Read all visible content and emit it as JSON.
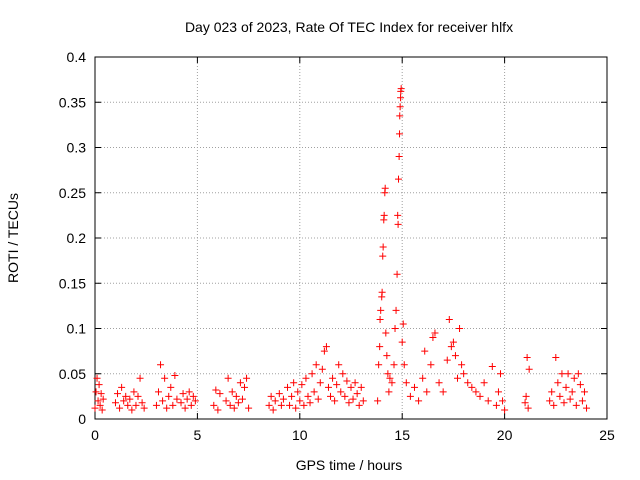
{
  "chart_data": {
    "type": "scatter",
    "title": "Day 023 of 2023, Rate Of TEC Index for receiver hlfx",
    "xlabel": "GPS time / hours",
    "ylabel": "ROTI / TECUs",
    "xlim": [
      0,
      25
    ],
    "ylim": [
      0,
      0.4
    ],
    "xticks": [
      0,
      5,
      10,
      15,
      20,
      25
    ],
    "xtick_labels": [
      "0",
      "5",
      "10",
      "15",
      "20",
      "25"
    ],
    "yticks": [
      0,
      0.05,
      0.1,
      0.15,
      0.2,
      0.25,
      0.3,
      0.35,
      0.4
    ],
    "ytick_labels": [
      "0",
      "0.05",
      "0.1",
      "0.15",
      "0.2",
      "0.25",
      "0.3",
      "0.35",
      "0.4"
    ],
    "grid": true,
    "marker": "+",
    "series": [
      {
        "color": "#ff0000",
        "points": [
          [
            0.0,
            0.012
          ],
          [
            0.05,
            0.03
          ],
          [
            0.1,
            0.045
          ],
          [
            0.15,
            0.02
          ],
          [
            0.2,
            0.038
          ],
          [
            0.25,
            0.015
          ],
          [
            0.3,
            0.028
          ],
          [
            0.35,
            0.01
          ],
          [
            0.4,
            0.022
          ],
          [
            1.0,
            0.018
          ],
          [
            1.1,
            0.028
          ],
          [
            1.2,
            0.012
          ],
          [
            1.3,
            0.035
          ],
          [
            1.4,
            0.02
          ],
          [
            1.5,
            0.025
          ],
          [
            1.6,
            0.015
          ],
          [
            1.7,
            0.022
          ],
          [
            1.8,
            0.01
          ],
          [
            1.9,
            0.03
          ],
          [
            2.0,
            0.015
          ],
          [
            2.1,
            0.025
          ],
          [
            2.2,
            0.045
          ],
          [
            2.3,
            0.018
          ],
          [
            2.4,
            0.012
          ],
          [
            3.0,
            0.015
          ],
          [
            3.1,
            0.03
          ],
          [
            3.2,
            0.06
          ],
          [
            3.3,
            0.02
          ],
          [
            3.4,
            0.045
          ],
          [
            3.5,
            0.012
          ],
          [
            3.6,
            0.025
          ],
          [
            3.7,
            0.035
          ],
          [
            3.8,
            0.015
          ],
          [
            3.9,
            0.048
          ],
          [
            4.0,
            0.022
          ],
          [
            4.2,
            0.018
          ],
          [
            4.3,
            0.028
          ],
          [
            4.4,
            0.012
          ],
          [
            4.5,
            0.022
          ],
          [
            4.6,
            0.03
          ],
          [
            4.7,
            0.015
          ],
          [
            4.8,
            0.025
          ],
          [
            4.9,
            0.02
          ],
          [
            5.8,
            0.015
          ],
          [
            5.9,
            0.032
          ],
          [
            6.0,
            0.01
          ],
          [
            6.1,
            0.028
          ],
          [
            6.4,
            0.02
          ],
          [
            6.5,
            0.045
          ],
          [
            6.6,
            0.015
          ],
          [
            6.7,
            0.03
          ],
          [
            6.8,
            0.012
          ],
          [
            6.9,
            0.025
          ],
          [
            7.0,
            0.018
          ],
          [
            7.1,
            0.04
          ],
          [
            7.2,
            0.022
          ],
          [
            7.3,
            0.035
          ],
          [
            7.4,
            0.045
          ],
          [
            7.5,
            0.012
          ],
          [
            8.5,
            0.015
          ],
          [
            8.6,
            0.025
          ],
          [
            8.7,
            0.01
          ],
          [
            8.8,
            0.02
          ],
          [
            9.0,
            0.028
          ],
          [
            9.1,
            0.015
          ],
          [
            9.2,
            0.022
          ],
          [
            9.4,
            0.035
          ],
          [
            9.5,
            0.015
          ],
          [
            9.6,
            0.025
          ],
          [
            9.7,
            0.04
          ],
          [
            9.8,
            0.012
          ],
          [
            9.9,
            0.03
          ],
          [
            10.0,
            0.02
          ],
          [
            10.1,
            0.038
          ],
          [
            10.2,
            0.015
          ],
          [
            10.3,
            0.045
          ],
          [
            10.4,
            0.025
          ],
          [
            10.5,
            0.018
          ],
          [
            10.6,
            0.05
          ],
          [
            10.7,
            0.03
          ],
          [
            10.8,
            0.06
          ],
          [
            10.9,
            0.022
          ],
          [
            11.0,
            0.04
          ],
          [
            11.1,
            0.055
          ],
          [
            11.2,
            0.075
          ],
          [
            11.3,
            0.08
          ],
          [
            11.4,
            0.035
          ],
          [
            11.5,
            0.025
          ],
          [
            11.6,
            0.045
          ],
          [
            11.7,
            0.02
          ],
          [
            11.8,
            0.038
          ],
          [
            11.9,
            0.06
          ],
          [
            12.0,
            0.03
          ],
          [
            12.1,
            0.05
          ],
          [
            12.2,
            0.025
          ],
          [
            12.3,
            0.042
          ],
          [
            12.4,
            0.018
          ],
          [
            12.5,
            0.035
          ],
          [
            12.6,
            0.022
          ],
          [
            12.7,
            0.04
          ],
          [
            12.8,
            0.028
          ],
          [
            12.9,
            0.015
          ],
          [
            13.0,
            0.035
          ],
          [
            13.1,
            0.02
          ],
          [
            13.8,
            0.02
          ],
          [
            13.85,
            0.06
          ],
          [
            13.9,
            0.08
          ],
          [
            13.92,
            0.11
          ],
          [
            13.95,
            0.12
          ],
          [
            14.0,
            0.135
          ],
          [
            14.02,
            0.14
          ],
          [
            14.05,
            0.18
          ],
          [
            14.07,
            0.19
          ],
          [
            14.1,
            0.22
          ],
          [
            14.12,
            0.225
          ],
          [
            14.15,
            0.25
          ],
          [
            14.17,
            0.255
          ],
          [
            14.2,
            0.095
          ],
          [
            14.25,
            0.07
          ],
          [
            14.3,
            0.05
          ],
          [
            14.35,
            0.03
          ],
          [
            14.4,
            0.045
          ],
          [
            14.5,
            0.04
          ],
          [
            14.6,
            0.06
          ],
          [
            14.65,
            0.1
          ],
          [
            14.7,
            0.12
          ],
          [
            14.75,
            0.16
          ],
          [
            14.78,
            0.225
          ],
          [
            14.8,
            0.215
          ],
          [
            14.82,
            0.265
          ],
          [
            14.85,
            0.29
          ],
          [
            14.87,
            0.315
          ],
          [
            14.88,
            0.335
          ],
          [
            14.9,
            0.345
          ],
          [
            14.92,
            0.355
          ],
          [
            14.93,
            0.362
          ],
          [
            14.95,
            0.365
          ],
          [
            15.0,
            0.085
          ],
          [
            15.05,
            0.105
          ],
          [
            15.1,
            0.06
          ],
          [
            15.2,
            0.04
          ],
          [
            15.4,
            0.025
          ],
          [
            15.6,
            0.035
          ],
          [
            15.8,
            0.02
          ],
          [
            16.0,
            0.045
          ],
          [
            16.1,
            0.075
          ],
          [
            16.2,
            0.03
          ],
          [
            16.4,
            0.06
          ],
          [
            16.5,
            0.09
          ],
          [
            16.6,
            0.095
          ],
          [
            16.8,
            0.04
          ],
          [
            17.0,
            0.03
          ],
          [
            17.2,
            0.065
          ],
          [
            17.3,
            0.11
          ],
          [
            17.4,
            0.08
          ],
          [
            17.5,
            0.085
          ],
          [
            17.6,
            0.07
          ],
          [
            17.7,
            0.045
          ],
          [
            17.8,
            0.1
          ],
          [
            17.9,
            0.06
          ],
          [
            18.0,
            0.05
          ],
          [
            18.2,
            0.04
          ],
          [
            18.4,
            0.035
          ],
          [
            18.6,
            0.03
          ],
          [
            18.8,
            0.025
          ],
          [
            19.0,
            0.04
          ],
          [
            19.2,
            0.02
          ],
          [
            19.4,
            0.058
          ],
          [
            19.6,
            0.015
          ],
          [
            19.7,
            0.03
          ],
          [
            19.8,
            0.05
          ],
          [
            19.9,
            0.02
          ],
          [
            20.0,
            0.01
          ],
          [
            21.0,
            0.018
          ],
          [
            21.05,
            0.025
          ],
          [
            21.1,
            0.068
          ],
          [
            21.15,
            0.012
          ],
          [
            21.2,
            0.055
          ],
          [
            22.2,
            0.02
          ],
          [
            22.3,
            0.03
          ],
          [
            22.4,
            0.015
          ],
          [
            22.5,
            0.068
          ],
          [
            22.6,
            0.04
          ],
          [
            22.7,
            0.025
          ],
          [
            22.8,
            0.05
          ],
          [
            22.9,
            0.018
          ],
          [
            23.0,
            0.035
          ],
          [
            23.1,
            0.05
          ],
          [
            23.2,
            0.022
          ],
          [
            23.3,
            0.03
          ],
          [
            23.4,
            0.045
          ],
          [
            23.5,
            0.015
          ],
          [
            23.6,
            0.05
          ],
          [
            23.7,
            0.038
          ],
          [
            23.8,
            0.02
          ],
          [
            23.9,
            0.03
          ],
          [
            24.0,
            0.012
          ]
        ]
      }
    ]
  }
}
